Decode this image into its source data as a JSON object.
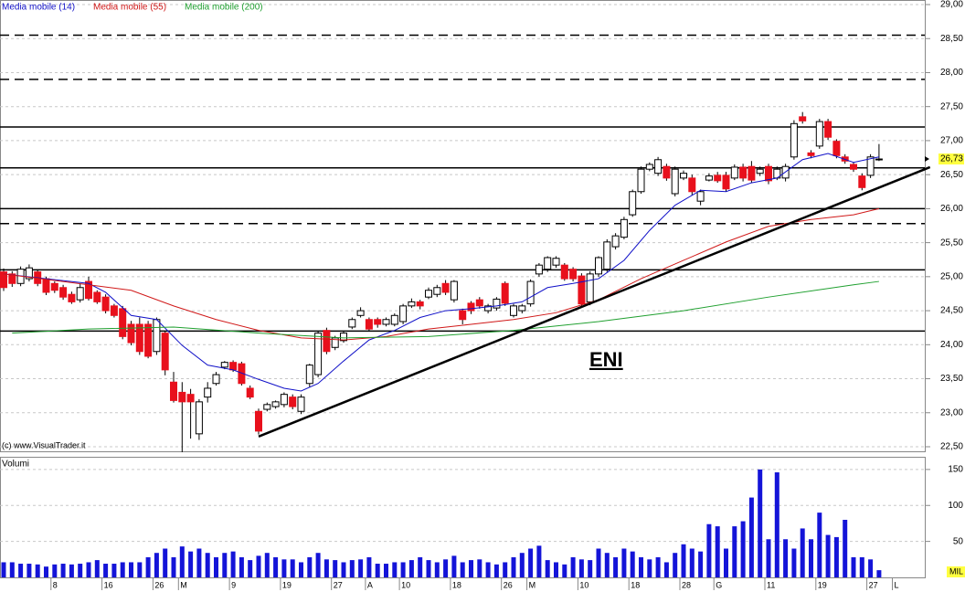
{
  "chart_data": [
    {
      "type": "candlestick",
      "annotation": "ENI",
      "credit": "(c) www.VisualTrader.it",
      "ylim": [
        22.5,
        29
      ],
      "yticks": [
        {
          "value": 22.5,
          "label": "22,50"
        },
        {
          "value": 23,
          "label": "23,00"
        },
        {
          "value": 23.5,
          "label": "23,50"
        },
        {
          "value": 24,
          "label": "24,00"
        },
        {
          "value": 24.5,
          "label": "24,50"
        },
        {
          "value": 25,
          "label": "25,00"
        },
        {
          "value": 25.5,
          "label": "25,50"
        },
        {
          "value": 26,
          "label": "26,00"
        },
        {
          "value": 26.5,
          "label": "26,50"
        },
        {
          "value": 27,
          "label": "27,00"
        },
        {
          "value": 27.5,
          "label": "27,50"
        },
        {
          "value": 28,
          "label": "28,00"
        },
        {
          "value": 28.5,
          "label": "28,50"
        },
        {
          "value": 29,
          "label": "29,00"
        }
      ],
      "grid": true,
      "up_color": "#ffffff",
      "down_color": "#e8101c",
      "last_price": {
        "value": 26.73,
        "label": "26,73"
      },
      "ohlc": [
        [
          25.07,
          25.12,
          24.79,
          24.84
        ],
        [
          25.04,
          25.08,
          24.85,
          24.9
        ],
        [
          24.9,
          25.15,
          24.86,
          25.11
        ],
        [
          24.97,
          25.18,
          24.93,
          25.13
        ],
        [
          25.07,
          25.1,
          24.86,
          24.9
        ],
        [
          24.97,
          25.0,
          24.73,
          24.77
        ],
        [
          24.9,
          24.93,
          24.76,
          24.8
        ],
        [
          24.84,
          24.88,
          24.66,
          24.7
        ],
        [
          24.74,
          24.78,
          24.6,
          24.63
        ],
        [
          24.66,
          24.9,
          24.62,
          24.84
        ],
        [
          24.93,
          25.0,
          24.65,
          24.68
        ],
        [
          24.77,
          24.8,
          24.6,
          24.63
        ],
        [
          24.7,
          24.74,
          24.46,
          24.5
        ],
        [
          24.57,
          24.6,
          24.4,
          24.43
        ],
        [
          24.53,
          24.57,
          24.08,
          24.12
        ],
        [
          24.3,
          24.35,
          23.99,
          24.03
        ],
        [
          24.3,
          24.4,
          23.85,
          23.9
        ],
        [
          24.3,
          24.35,
          23.8,
          23.83
        ],
        [
          23.9,
          24.4,
          23.85,
          24.37
        ],
        [
          24.17,
          24.2,
          23.55,
          23.63
        ],
        [
          23.45,
          23.6,
          23.15,
          23.18
        ],
        [
          23.3,
          23.45,
          22.42,
          23.16
        ],
        [
          23.27,
          23.35,
          22.62,
          23.16
        ],
        [
          22.69,
          23.2,
          22.6,
          23.16
        ],
        [
          23.23,
          23.45,
          23.15,
          23.36
        ],
        [
          23.43,
          23.6,
          23.4,
          23.56
        ],
        [
          23.67,
          23.76,
          23.64,
          23.74
        ],
        [
          23.74,
          23.77,
          23.6,
          23.63
        ],
        [
          23.72,
          23.75,
          23.4,
          23.43
        ],
        [
          23.36,
          23.4,
          23.2,
          23.23
        ],
        [
          23.02,
          23.06,
          22.68,
          22.73
        ],
        [
          23.05,
          23.15,
          23.02,
          23.12
        ],
        [
          23.09,
          23.18,
          23.06,
          23.16
        ],
        [
          23.12,
          23.3,
          23.08,
          23.27
        ],
        [
          23.23,
          23.27,
          23.05,
          23.09
        ],
        [
          23.02,
          23.27,
          22.98,
          23.23
        ],
        [
          23.43,
          23.72,
          23.38,
          23.7
        ],
        [
          23.56,
          24.2,
          23.52,
          24.17
        ],
        [
          24.21,
          24.25,
          23.86,
          23.9
        ],
        [
          23.96,
          24.13,
          23.92,
          24.1
        ],
        [
          24.06,
          24.2,
          24.03,
          24.17
        ],
        [
          24.26,
          24.4,
          24.23,
          24.37
        ],
        [
          24.43,
          24.55,
          24.4,
          24.5
        ],
        [
          24.37,
          24.4,
          24.2,
          24.23
        ],
        [
          24.37,
          24.4,
          24.25,
          24.3
        ],
        [
          24.3,
          24.4,
          24.27,
          24.37
        ],
        [
          24.3,
          24.46,
          24.27,
          24.43
        ],
        [
          24.34,
          24.6,
          24.3,
          24.57
        ],
        [
          24.57,
          24.68,
          24.54,
          24.63
        ],
        [
          24.63,
          24.66,
          24.52,
          24.57
        ],
        [
          24.7,
          24.84,
          24.67,
          24.8
        ],
        [
          24.74,
          24.88,
          24.7,
          24.84
        ],
        [
          24.9,
          24.95,
          24.73,
          24.77
        ],
        [
          24.66,
          24.95,
          24.62,
          24.93
        ],
        [
          24.5,
          24.53,
          24.3,
          24.37
        ],
        [
          24.61,
          24.64,
          24.45,
          24.5
        ],
        [
          24.66,
          24.7,
          24.53,
          24.57
        ],
        [
          24.5,
          24.6,
          24.46,
          24.57
        ],
        [
          24.54,
          24.7,
          24.5,
          24.67
        ],
        [
          24.9,
          24.93,
          24.57,
          24.61
        ],
        [
          24.43,
          24.6,
          24.4,
          24.57
        ],
        [
          24.5,
          24.6,
          24.46,
          24.57
        ],
        [
          24.6,
          24.96,
          24.56,
          24.93
        ],
        [
          25.04,
          25.2,
          25.0,
          25.17
        ],
        [
          25.11,
          25.3,
          25.07,
          25.28
        ],
        [
          25.17,
          25.3,
          25.13,
          25.27
        ],
        [
          25.17,
          25.2,
          24.94,
          24.97
        ],
        [
          25.11,
          25.14,
          24.93,
          24.97
        ],
        [
          25.01,
          25.05,
          24.55,
          24.6
        ],
        [
          24.63,
          25.08,
          24.58,
          25.04
        ],
        [
          25.04,
          25.3,
          25.0,
          25.28
        ],
        [
          25.11,
          25.55,
          25.07,
          25.51
        ],
        [
          25.44,
          25.64,
          25.4,
          25.6
        ],
        [
          25.58,
          25.88,
          25.55,
          25.84
        ],
        [
          25.91,
          26.28,
          25.88,
          26.25
        ],
        [
          26.25,
          26.62,
          26.22,
          26.58
        ],
        [
          26.58,
          26.68,
          26.55,
          26.65
        ],
        [
          26.52,
          26.76,
          26.48,
          26.72
        ],
        [
          26.62,
          26.66,
          26.41,
          26.45
        ],
        [
          26.22,
          26.62,
          26.18,
          26.58
        ],
        [
          26.45,
          26.56,
          26.42,
          26.52
        ],
        [
          26.45,
          26.5,
          26.2,
          26.25
        ],
        [
          26.11,
          26.28,
          26.05,
          26.25
        ],
        [
          26.42,
          26.52,
          26.4,
          26.48
        ],
        [
          26.49,
          26.54,
          26.38,
          26.41
        ],
        [
          26.49,
          26.54,
          26.25,
          26.29
        ],
        [
          26.45,
          26.65,
          26.42,
          26.61
        ],
        [
          26.61,
          26.66,
          26.4,
          26.45
        ],
        [
          26.62,
          26.7,
          26.38,
          26.42
        ],
        [
          26.52,
          26.62,
          26.48,
          26.58
        ],
        [
          26.62,
          26.66,
          26.36,
          26.41
        ],
        [
          26.45,
          26.62,
          26.42,
          26.58
        ],
        [
          26.45,
          26.66,
          26.4,
          26.62
        ],
        [
          26.76,
          27.3,
          26.72,
          27.25
        ],
        [
          27.35,
          27.42,
          27.25,
          27.29
        ],
        [
          26.82,
          26.86,
          26.74,
          26.78
        ],
        [
          26.92,
          27.32,
          26.88,
          27.28
        ],
        [
          27.28,
          27.32,
          27.01,
          27.05
        ],
        [
          26.99,
          27.02,
          26.74,
          26.78
        ],
        [
          26.76,
          26.8,
          26.66,
          26.7
        ],
        [
          26.65,
          26.68,
          26.54,
          26.58
        ],
        [
          26.48,
          26.52,
          26.27,
          26.31
        ],
        [
          26.49,
          26.8,
          26.45,
          26.76
        ],
        [
          26.72,
          26.95,
          26.7,
          26.73
        ]
      ],
      "series": [
        {
          "name": "Media mobile (14)",
          "color": "#1010c8",
          "x": [
            0,
            5,
            10,
            12,
            15,
            18,
            21,
            24,
            27,
            30,
            33,
            35,
            37,
            40,
            43,
            46,
            49,
            52,
            55,
            58,
            61,
            64,
            67,
            70,
            73,
            76,
            79,
            82,
            85,
            88,
            91,
            94,
            97,
            100,
            103
          ],
          "values": [
            25.04,
            24.97,
            24.9,
            24.77,
            24.43,
            24.37,
            23.99,
            23.7,
            23.63,
            23.49,
            23.36,
            23.32,
            23.43,
            23.76,
            24.07,
            24.21,
            24.4,
            24.5,
            24.53,
            24.57,
            24.63,
            24.84,
            24.9,
            24.97,
            25.24,
            25.68,
            26.05,
            26.27,
            26.25,
            26.38,
            26.45,
            26.72,
            26.81,
            26.68,
            26.76
          ]
        },
        {
          "name": "Media mobile (55)",
          "color": "#d01818",
          "x": [
            0,
            10,
            15,
            20,
            25,
            30,
            35,
            40,
            45,
            50,
            55,
            60,
            65,
            70,
            75,
            80,
            85,
            90,
            95,
            100,
            103
          ],
          "values": [
            25.04,
            24.88,
            24.8,
            24.57,
            24.37,
            24.21,
            24.1,
            24.07,
            24.12,
            24.23,
            24.3,
            24.37,
            24.47,
            24.66,
            24.97,
            25.24,
            25.51,
            25.74,
            25.84,
            25.91,
            26.0
          ]
        },
        {
          "name": "Media mobile (200)",
          "color": "#20a030",
          "x": [
            1,
            10,
            20,
            30,
            40,
            50,
            60,
            70,
            80,
            90,
            100,
            103
          ],
          "values": [
            24.17,
            24.23,
            24.26,
            24.17,
            24.1,
            24.12,
            24.21,
            24.34,
            24.5,
            24.7,
            24.88,
            24.93
          ]
        }
      ],
      "levels": [
        {
          "value": 28.55,
          "style": "dashed"
        },
        {
          "value": 27.9,
          "style": "dashed"
        },
        {
          "value": 27.2,
          "style": "solid"
        },
        {
          "value": 26.6,
          "style": "solid"
        },
        {
          "value": 26.0,
          "style": "solid"
        },
        {
          "value": 25.78,
          "style": "dashed"
        },
        {
          "value": 25.1,
          "style": "solid"
        },
        {
          "value": 24.2,
          "style": "solid"
        }
      ],
      "trendline": {
        "x": [
          30,
          109
        ],
        "values": [
          22.65,
          26.61
        ]
      }
    },
    {
      "type": "bar",
      "title": "Volumi",
      "unit": "MIL",
      "color": "#1414d8",
      "ylim": [
        0,
        160
      ],
      "yticks": [
        50,
        100,
        150
      ],
      "grid": true,
      "values": [
        21,
        21,
        19,
        19,
        18,
        15,
        18,
        19,
        18,
        19,
        21,
        24,
        19,
        19,
        21,
        21,
        21,
        28,
        34,
        40,
        28,
        43,
        36,
        40,
        34,
        28,
        34,
        36,
        28,
        24,
        30,
        34,
        28,
        25,
        25,
        21,
        28,
        34,
        25,
        24,
        21,
        24,
        25,
        28,
        19,
        19,
        21,
        21,
        24,
        28,
        24,
        21,
        25,
        30,
        21,
        24,
        25,
        21,
        18,
        21,
        28,
        34,
        40,
        44,
        24,
        21,
        18,
        28,
        25,
        24,
        40,
        34,
        28,
        40,
        36,
        28,
        25,
        28,
        21,
        34,
        46,
        40,
        36,
        74,
        71,
        40,
        71,
        78,
        111,
        150,
        53,
        146,
        53,
        40,
        68,
        53,
        90,
        59,
        56,
        80,
        28,
        28,
        25,
        10
      ],
      "xticks": [
        {
          "value": 6,
          "label": "8"
        },
        {
          "value": 12,
          "label": "16"
        },
        {
          "value": 18,
          "label": "26"
        },
        {
          "value": 21,
          "label": "M"
        },
        {
          "value": 27,
          "label": "9"
        },
        {
          "value": 33,
          "label": "19"
        },
        {
          "value": 39,
          "label": "27"
        },
        {
          "value": 43,
          "label": "A"
        },
        {
          "value": 47,
          "label": "10"
        },
        {
          "value": 53,
          "label": "18"
        },
        {
          "value": 59,
          "label": "26"
        },
        {
          "value": 62,
          "label": "M"
        },
        {
          "value": 68,
          "label": "10"
        },
        {
          "value": 74,
          "label": "18"
        },
        {
          "value": 80,
          "label": "28"
        },
        {
          "value": 84,
          "label": "G"
        },
        {
          "value": 90,
          "label": "11"
        },
        {
          "value": 96,
          "label": "19"
        },
        {
          "value": 102,
          "label": "27"
        },
        {
          "value": 105,
          "label": "L"
        }
      ]
    }
  ]
}
